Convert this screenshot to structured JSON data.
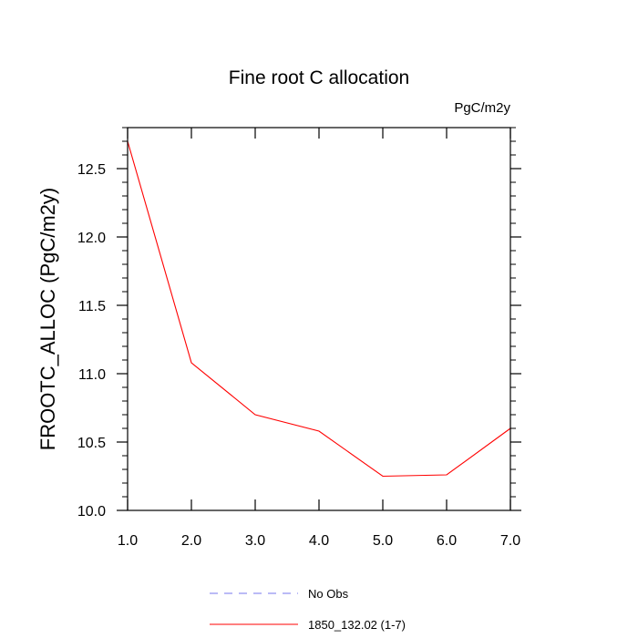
{
  "chart_data": {
    "type": "line",
    "title": "Fine root C allocation",
    "units_label": "PgC/m2y",
    "xlabel": "",
    "ylabel": "FROOTC_ALLOC  (PgC/m2y)",
    "xlim": [
      1.0,
      7.0
    ],
    "ylim": [
      10.0,
      12.8
    ],
    "x_ticks": [
      1.0,
      2.0,
      3.0,
      4.0,
      5.0,
      6.0,
      7.0
    ],
    "x_tick_labels": [
      "1.0",
      "2.0",
      "3.0",
      "4.0",
      "5.0",
      "6.0",
      "7.0"
    ],
    "y_ticks": [
      10.0,
      10.5,
      11.0,
      11.5,
      12.0,
      12.5
    ],
    "y_tick_labels": [
      "10.0",
      "10.5",
      "11.0",
      "11.5",
      "12.0",
      "12.5"
    ],
    "grid": false,
    "legend_position": "bottom",
    "series": [
      {
        "name": "1850_132.02 (1-7)",
        "color": "#ff0000",
        "style": "solid",
        "x": [
          1.0,
          2.0,
          3.0,
          4.0,
          5.0,
          6.0,
          7.0
        ],
        "values": [
          12.7,
          11.08,
          10.7,
          10.58,
          10.25,
          10.26,
          10.6
        ]
      }
    ],
    "legend": [
      {
        "label": "No Obs",
        "color": "#7777ee",
        "style": "dashed"
      },
      {
        "label": "1850_132.02 (1-7)",
        "color": "#ff0000",
        "style": "solid"
      }
    ]
  }
}
